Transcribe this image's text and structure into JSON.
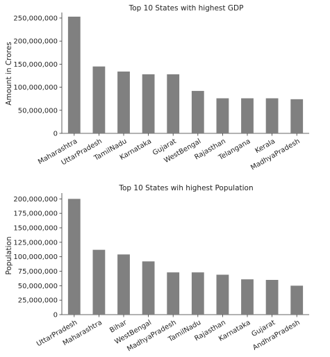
{
  "chart_data": [
    {
      "type": "bar",
      "title": "Top 10 States with highest GDP",
      "xlabel": "",
      "ylabel": "Amount in Crores",
      "categories": [
        "Maharashtra",
        "UttarPradesh",
        "TamilNadu",
        "Karnataka",
        "Gujarat",
        "WestBengal",
        "Rajasthan",
        "Telangana",
        "Kerala",
        "MadhyaPradesh"
      ],
      "values": [
        253000000,
        145000000,
        134000000,
        128000000,
        128000000,
        92000000,
        76000000,
        76000000,
        76000000,
        74000000
      ],
      "ylim": [
        0,
        262000000
      ],
      "yticks": [
        0,
        50000000,
        100000000,
        150000000,
        200000000,
        250000000
      ],
      "ytick_labels": [
        "0",
        "50,000,000",
        "100,000,000",
        "150,000,000",
        "200,000,000",
        "250,000,000"
      ],
      "bar_color": "#808080",
      "grid": false,
      "legend": "none"
    },
    {
      "type": "bar",
      "title": "Top 10 States wih highest Population",
      "xlabel": "",
      "ylabel": "Population",
      "categories": [
        "UttarPradesh",
        "Maharashtra",
        "Bihar",
        "WestBengal",
        "MadhyaPradesh",
        "TamilNadu",
        "Rajasthan",
        "Karnataka",
        "Gujarat",
        "AndhraPradesh"
      ],
      "values": [
        200000000,
        112000000,
        104000000,
        92000000,
        73000000,
        73000000,
        69000000,
        61000000,
        60000000,
        50000000
      ],
      "ylim": [
        0,
        210000000
      ],
      "yticks": [
        0,
        25000000,
        50000000,
        75000000,
        100000000,
        125000000,
        150000000,
        175000000,
        200000000
      ],
      "ytick_labels": [
        "0",
        "25,000,000",
        "50,000,000",
        "75,000,000",
        "100,000,000",
        "125,000,000",
        "150,000,000",
        "175,000,000",
        "200,000,000"
      ],
      "bar_color": "#808080",
      "grid": false,
      "legend": "none"
    }
  ]
}
